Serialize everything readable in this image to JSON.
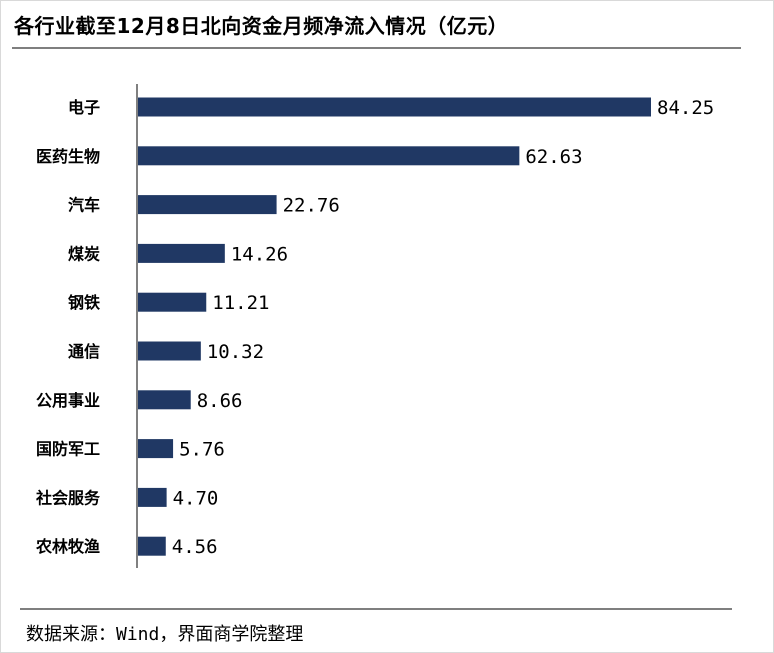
{
  "title": "各行业截至12月8日北向资金月频净流入情况（亿元）",
  "source": "数据来源：Wind，界面商学院整理",
  "colors": {
    "bar": "#203864",
    "axis": "#000000",
    "rule": "#7f7f7f"
  },
  "chart_data": {
    "type": "bar",
    "orientation": "horizontal",
    "title": "各行业截至12月8日北向资金月频净流入情况（亿元）",
    "categories": [
      "电子",
      "医药生物",
      "汽车",
      "煤炭",
      "钢铁",
      "通信",
      "公用事业",
      "国防军工",
      "社会服务",
      "农林牧渔"
    ],
    "values": [
      84.25,
      62.63,
      22.76,
      14.26,
      11.21,
      10.32,
      8.66,
      5.76,
      4.7,
      4.56
    ],
    "value_labels": [
      "84.25",
      "62.63",
      "22.76",
      "14.26",
      "11.21",
      "10.32",
      "8.66",
      "5.76",
      "4.70",
      "4.56"
    ],
    "xlabel": "",
    "ylabel": "",
    "xlim": [
      0,
      84.25
    ],
    "grid": false,
    "legend": "none"
  }
}
